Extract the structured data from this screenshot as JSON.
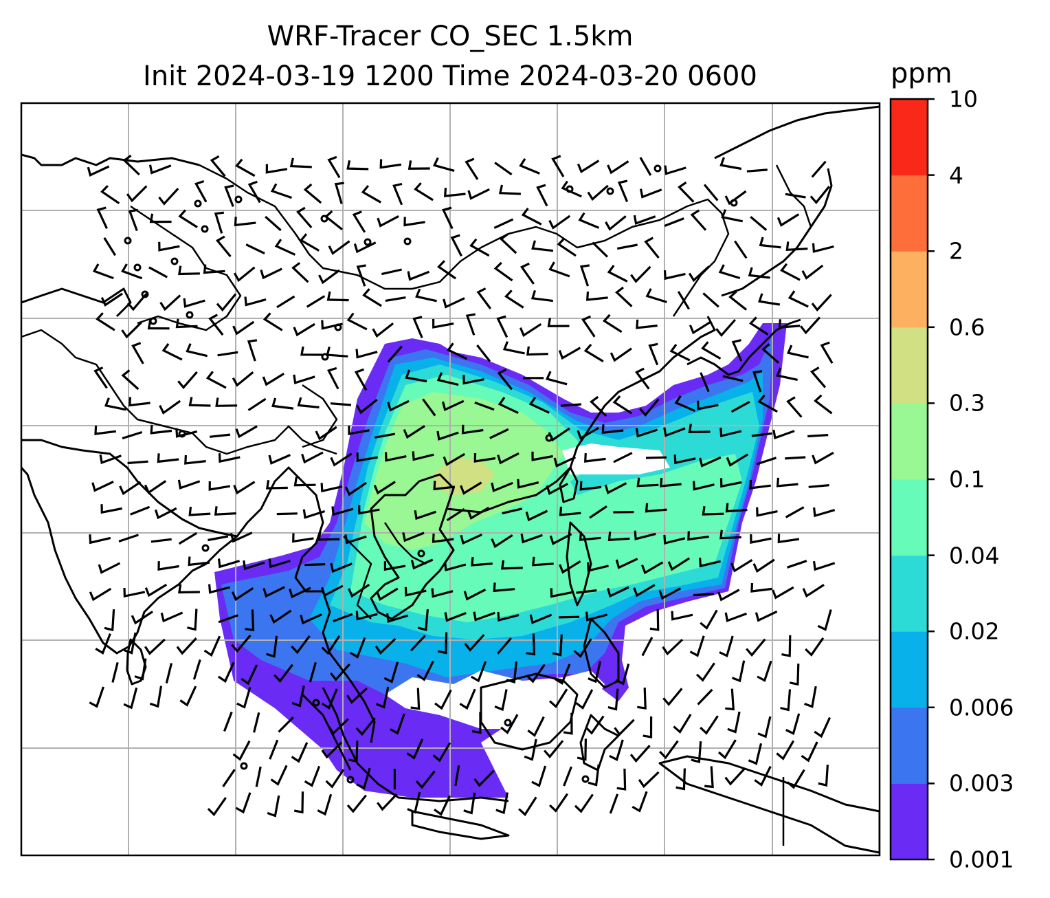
{
  "title": {
    "line1": "WRF-Tracer CO_SEC 1.5km",
    "line2": "Init 2024-03-19 1200 Time 2024-03-20 0600"
  },
  "colorbar": {
    "unit": "ppm",
    "labels": [
      "0.001",
      "0.003",
      "0.006",
      "0.02",
      "0.04",
      "0.1",
      "0.3",
      "0.6",
      "2",
      "4",
      "10"
    ],
    "colors": [
      "#6a2cf5",
      "#3b76f0",
      "#08b1ea",
      "#2ddbd6",
      "#66fbb8",
      "#99f794",
      "#d0e083",
      "#fdb05f",
      "#fe6e3a",
      "#fa2818"
    ]
  },
  "map": {
    "gridlines": true,
    "features": [
      "coastlines",
      "country-borders",
      "wind-barbs",
      "tracer-concentration"
    ]
  }
}
